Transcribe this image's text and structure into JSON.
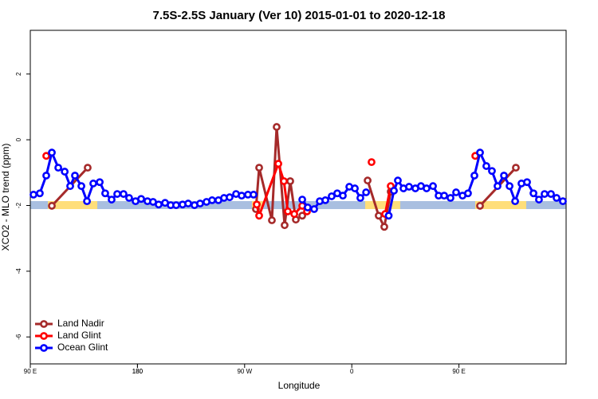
{
  "chart_data": {
    "type": "line",
    "title": "7.5S-2.5S January (Ver 10)   2015-01-01 to 2020-12-18",
    "xlabel": "Longitude",
    "ylabel": "XCO2 - MLO trend (ppm)",
    "xlim": [
      90,
      540
    ],
    "xticks": [
      {
        "value": 90,
        "label": "90 E"
      },
      180,
      {
        "value": 270,
        "label": "90 W"
      },
      {
        "value": 360,
        "label": "0"
      },
      {
        "value": 450,
        "label": "90 E"
      },
      180.0001
    ],
    "ylim": [
      -6.82,
      3.33
    ],
    "yticks": [
      -6,
      -4,
      -2,
      0,
      2
    ],
    "legend": "bottom-left",
    "series": [
      {
        "name": "Land Nadir",
        "color": "#a52a2a",
        "x": [
          108.1,
          138.2,
          null,
          279.5,
          282.2,
          292.9,
          296.9,
          303.6,
          308.3,
          313.0,
          318.4,
          null,
          373.3,
          382.6,
          387.3,
          392.7,
          null,
          467.7,
          497.8
        ],
        "values": [
          -2.01,
          -0.85,
          null,
          -2.11,
          -0.85,
          -2.45,
          0.39,
          -2.6,
          -1.26,
          -2.43,
          -2.31,
          null,
          -1.24,
          -2.31,
          -2.65,
          -1.58,
          null,
          -2.01,
          -0.85
        ]
      },
      {
        "name": "Land Glint",
        "color": "#ff0000",
        "x": [
          103.4,
          null,
          280.2,
          282.2,
          298.3,
          303.0,
          306.3,
          311.7,
          318.4,
          322.4,
          null,
          376.6,
          null,
          388.0,
          392.7,
          null,
          463.7
        ],
        "values": [
          -0.49,
          null,
          -1.97,
          -2.31,
          -0.73,
          -1.26,
          -2.18,
          -2.26,
          -2.01,
          -2.18,
          null,
          -0.68,
          null,
          -2.26,
          -1.41,
          null,
          -0.49
        ]
      },
      {
        "name": "Ocean Glint",
        "color": "#0000ff",
        "x": [
          92.7,
          98.0,
          103.4,
          108.1,
          113.5,
          118.9,
          123.5,
          127.5,
          132.9,
          137.6,
          142.9,
          148.3,
          152.9,
          158.3,
          163.0,
          168.3,
          173.0,
          178.4,
          183.1,
          188.4,
          193.1,
          197.8,
          203.2,
          207.9,
          212.5,
          217.9,
          222.6,
          227.9,
          232.6,
          238.0,
          242.7,
          248.0,
          252.7,
          257.4,
          262.8,
          267.5,
          272.8,
          277.5,
          null,
          318.4,
          323.0,
          328.4,
          333.1,
          337.8,
          343.1,
          347.8,
          352.5,
          357.9,
          362.6,
          367.2,
          372.0,
          null,
          391.0,
          395.4,
          398.7,
          403.4,
          408.1,
          413.4,
          418.1,
          422.8,
          428.2,
          432.9,
          437.6,
          442.9,
          447.6,
          453.0,
          457.6,
          463.0,
          467.7,
          473.0,
          477.7,
          482.4,
          487.8,
          492.5,
          497.2,
          502.5,
          507.2,
          512.6,
          517.2,
          521.9,
          527.3,
          532.0,
          537.3
        ],
        "values": [
          -1.67,
          -1.63,
          -1.09,
          -0.39,
          -0.85,
          -0.97,
          -1.41,
          -1.09,
          -1.41,
          -1.87,
          -1.33,
          -1.29,
          -1.63,
          -1.82,
          -1.65,
          -1.65,
          -1.77,
          -1.87,
          -1.8,
          -1.87,
          -1.89,
          -1.97,
          -1.92,
          -1.99,
          -1.99,
          -1.97,
          -1.94,
          -1.99,
          -1.94,
          -1.89,
          -1.84,
          -1.84,
          -1.77,
          -1.75,
          -1.65,
          -1.7,
          -1.67,
          -1.67,
          null,
          -1.82,
          -2.06,
          -2.11,
          -1.87,
          -1.84,
          -1.72,
          -1.63,
          -1.7,
          -1.43,
          -1.48,
          -1.77,
          -1.6,
          null,
          -2.31,
          -1.55,
          -1.24,
          -1.48,
          -1.43,
          -1.48,
          -1.41,
          -1.48,
          -1.41,
          -1.7,
          -1.7,
          -1.77,
          -1.6,
          -1.7,
          -1.63,
          -1.09,
          -0.39,
          -0.8,
          -0.95,
          -1.41,
          -1.09,
          -1.41,
          -1.87,
          -1.33,
          -1.29,
          -1.63,
          -1.82,
          -1.65,
          -1.65,
          -1.77,
          -1.87
        ]
      }
    ]
  }
}
